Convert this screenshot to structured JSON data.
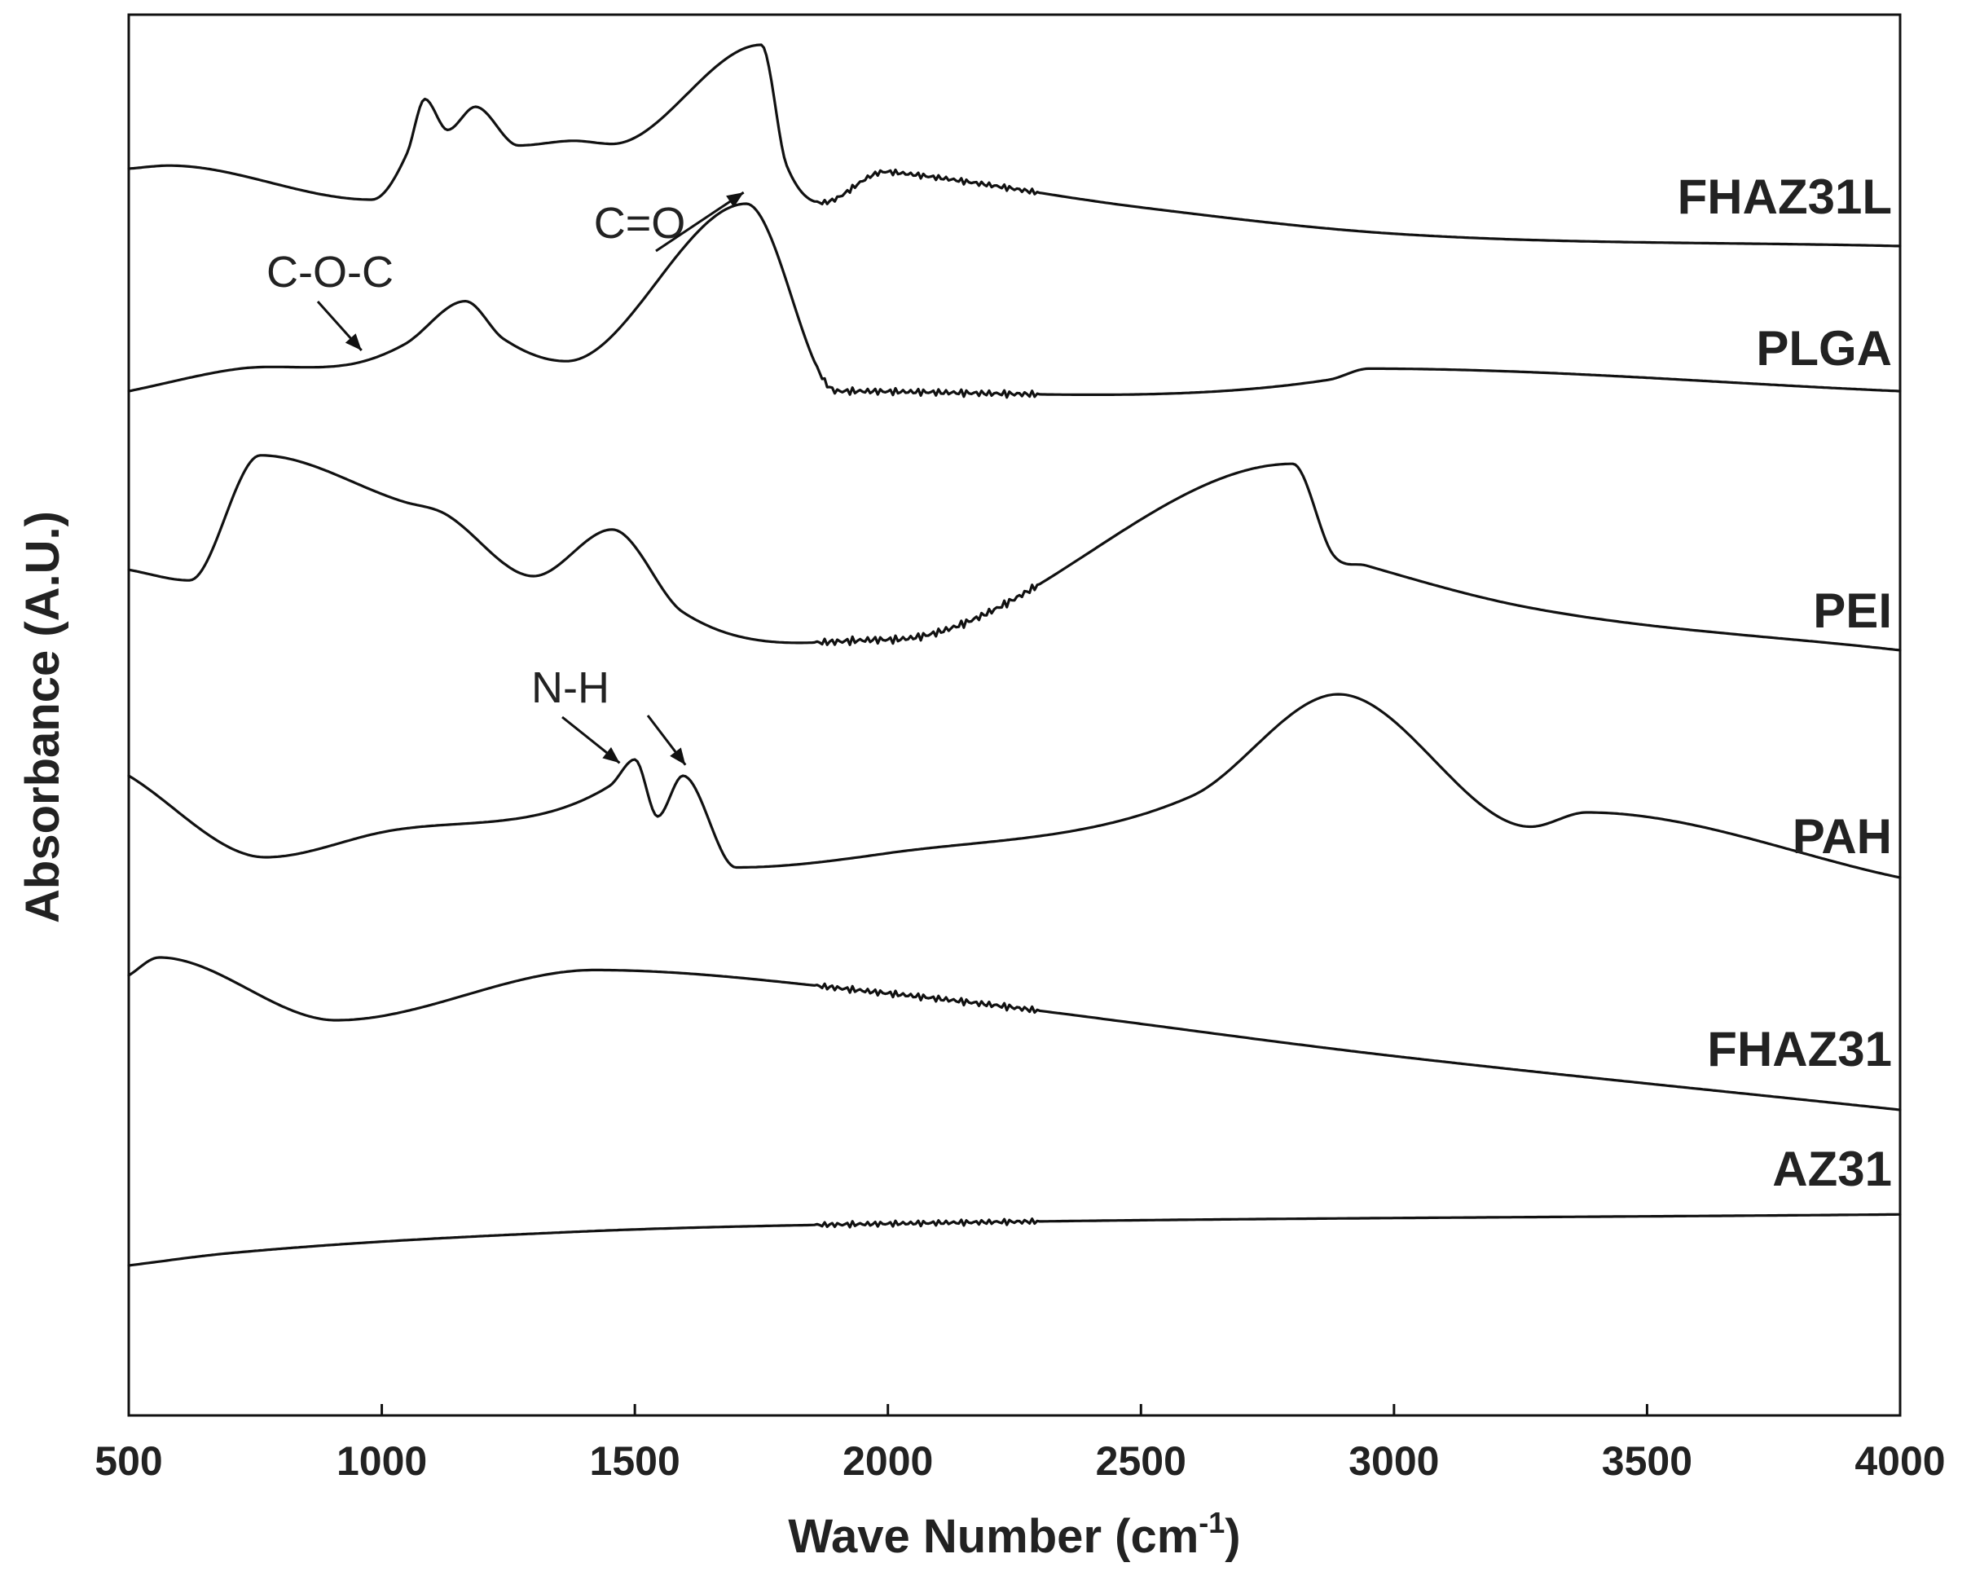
{
  "chart_data": {
    "type": "line",
    "title": "",
    "xlabel": "Wave Number (cm",
    "xlabel_sup": "-1",
    "xlabel_close": ")",
    "ylabel": "Absorbance (A.U.)",
    "xlim": [
      500,
      4000
    ],
    "xticks": [
      "500",
      "1000",
      "1500",
      "2000",
      "2500",
      "3000",
      "3500",
      "4000"
    ],
    "y_ticks_shown": false,
    "series": [
      {
        "name": "FHAZ31L",
        "offset": 5,
        "peaks": [
          {
            "x": 500,
            "y": 0.5
          },
          {
            "x": 580,
            "y": 0.52
          },
          {
            "x": 980,
            "y": 0.3
          },
          {
            "x": 1050,
            "y": 0.6
          },
          {
            "x": 1085,
            "y": 0.95
          },
          {
            "x": 1130,
            "y": 0.75
          },
          {
            "x": 1185,
            "y": 0.9
          },
          {
            "x": 1270,
            "y": 0.65
          },
          {
            "x": 1380,
            "y": 0.68
          },
          {
            "x": 1455,
            "y": 0.66
          },
          {
            "x": 1750,
            "y": 1.3
          },
          {
            "x": 1800,
            "y": 0.52
          },
          {
            "x": 2000,
            "y": 0.48
          },
          {
            "x": 2500,
            "y": 0.25
          },
          {
            "x": 3000,
            "y": 0.08
          },
          {
            "x": 4000,
            "y": 0.0
          }
        ]
      },
      {
        "name": "PLGA",
        "offset": 4,
        "peaks": [
          {
            "x": 500,
            "y": 0.0
          },
          {
            "x": 720,
            "y": 0.12
          },
          {
            "x": 950,
            "y": 0.15
          },
          {
            "x": 1045,
            "y": 0.25
          },
          {
            "x": 1165,
            "y": 0.48
          },
          {
            "x": 1240,
            "y": 0.28
          },
          {
            "x": 1365,
            "y": 0.16
          },
          {
            "x": 1720,
            "y": 1.0
          },
          {
            "x": 1900,
            "y": 0.0
          },
          {
            "x": 2870,
            "y": 0.06
          },
          {
            "x": 2950,
            "y": 0.12
          },
          {
            "x": 4000,
            "y": 0.0
          }
        ]
      },
      {
        "name": "PEI",
        "offset": 3,
        "peaks": [
          {
            "x": 500,
            "y": 0.38
          },
          {
            "x": 620,
            "y": 0.33
          },
          {
            "x": 760,
            "y": 0.92
          },
          {
            "x": 1045,
            "y": 0.7
          },
          {
            "x": 1120,
            "y": 0.65
          },
          {
            "x": 1300,
            "y": 0.35
          },
          {
            "x": 1455,
            "y": 0.57
          },
          {
            "x": 1595,
            "y": 0.18
          },
          {
            "x": 2000,
            "y": 0.05
          },
          {
            "x": 2800,
            "y": 0.88
          },
          {
            "x": 2880,
            "y": 0.45
          },
          {
            "x": 2945,
            "y": 0.4
          },
          {
            "x": 3270,
            "y": 0.2
          },
          {
            "x": 4000,
            "y": 0.0
          }
        ]
      },
      {
        "name": "PAH",
        "offset": 2,
        "peaks": [
          {
            "x": 500,
            "y": 0.5
          },
          {
            "x": 770,
            "y": 0.1
          },
          {
            "x": 995,
            "y": 0.22
          },
          {
            "x": 1450,
            "y": 0.45
          },
          {
            "x": 1500,
            "y": 0.58
          },
          {
            "x": 1545,
            "y": 0.3
          },
          {
            "x": 1595,
            "y": 0.5
          },
          {
            "x": 1700,
            "y": 0.05
          },
          {
            "x": 2000,
            "y": 0.12
          },
          {
            "x": 2600,
            "y": 0.4
          },
          {
            "x": 2890,
            "y": 0.9
          },
          {
            "x": 3270,
            "y": 0.25
          },
          {
            "x": 3380,
            "y": 0.32
          },
          {
            "x": 4000,
            "y": 0.0
          }
        ]
      },
      {
        "name": "FHAZ31",
        "offset": 1,
        "peaks": [
          {
            "x": 500,
            "y": 0.75
          },
          {
            "x": 560,
            "y": 0.85
          },
          {
            "x": 910,
            "y": 0.5
          },
          {
            "x": 1420,
            "y": 0.78
          },
          {
            "x": 2000,
            "y": 0.65
          },
          {
            "x": 3000,
            "y": 0.3
          },
          {
            "x": 4000,
            "y": 0.0
          }
        ]
      },
      {
        "name": "AZ31",
        "offset": 0,
        "peaks": [
          {
            "x": 500,
            "y": 0.0
          },
          {
            "x": 700,
            "y": 0.08
          },
          {
            "x": 1400,
            "y": 0.22
          },
          {
            "x": 2000,
            "y": 0.27
          },
          {
            "x": 4000,
            "y": 0.33
          }
        ]
      }
    ],
    "annotations": [
      {
        "text": "C-O-C",
        "points_to": [
          {
            "series": "PLGA",
            "x": 960
          }
        ]
      },
      {
        "text": "C=O",
        "points_to": [
          {
            "series": "PLGA",
            "x": 1715
          }
        ]
      },
      {
        "text": "N-H",
        "points_to": [
          {
            "series": "PAH",
            "x": 1470
          },
          {
            "series": "PAH",
            "x": 1600
          }
        ]
      }
    ]
  }
}
